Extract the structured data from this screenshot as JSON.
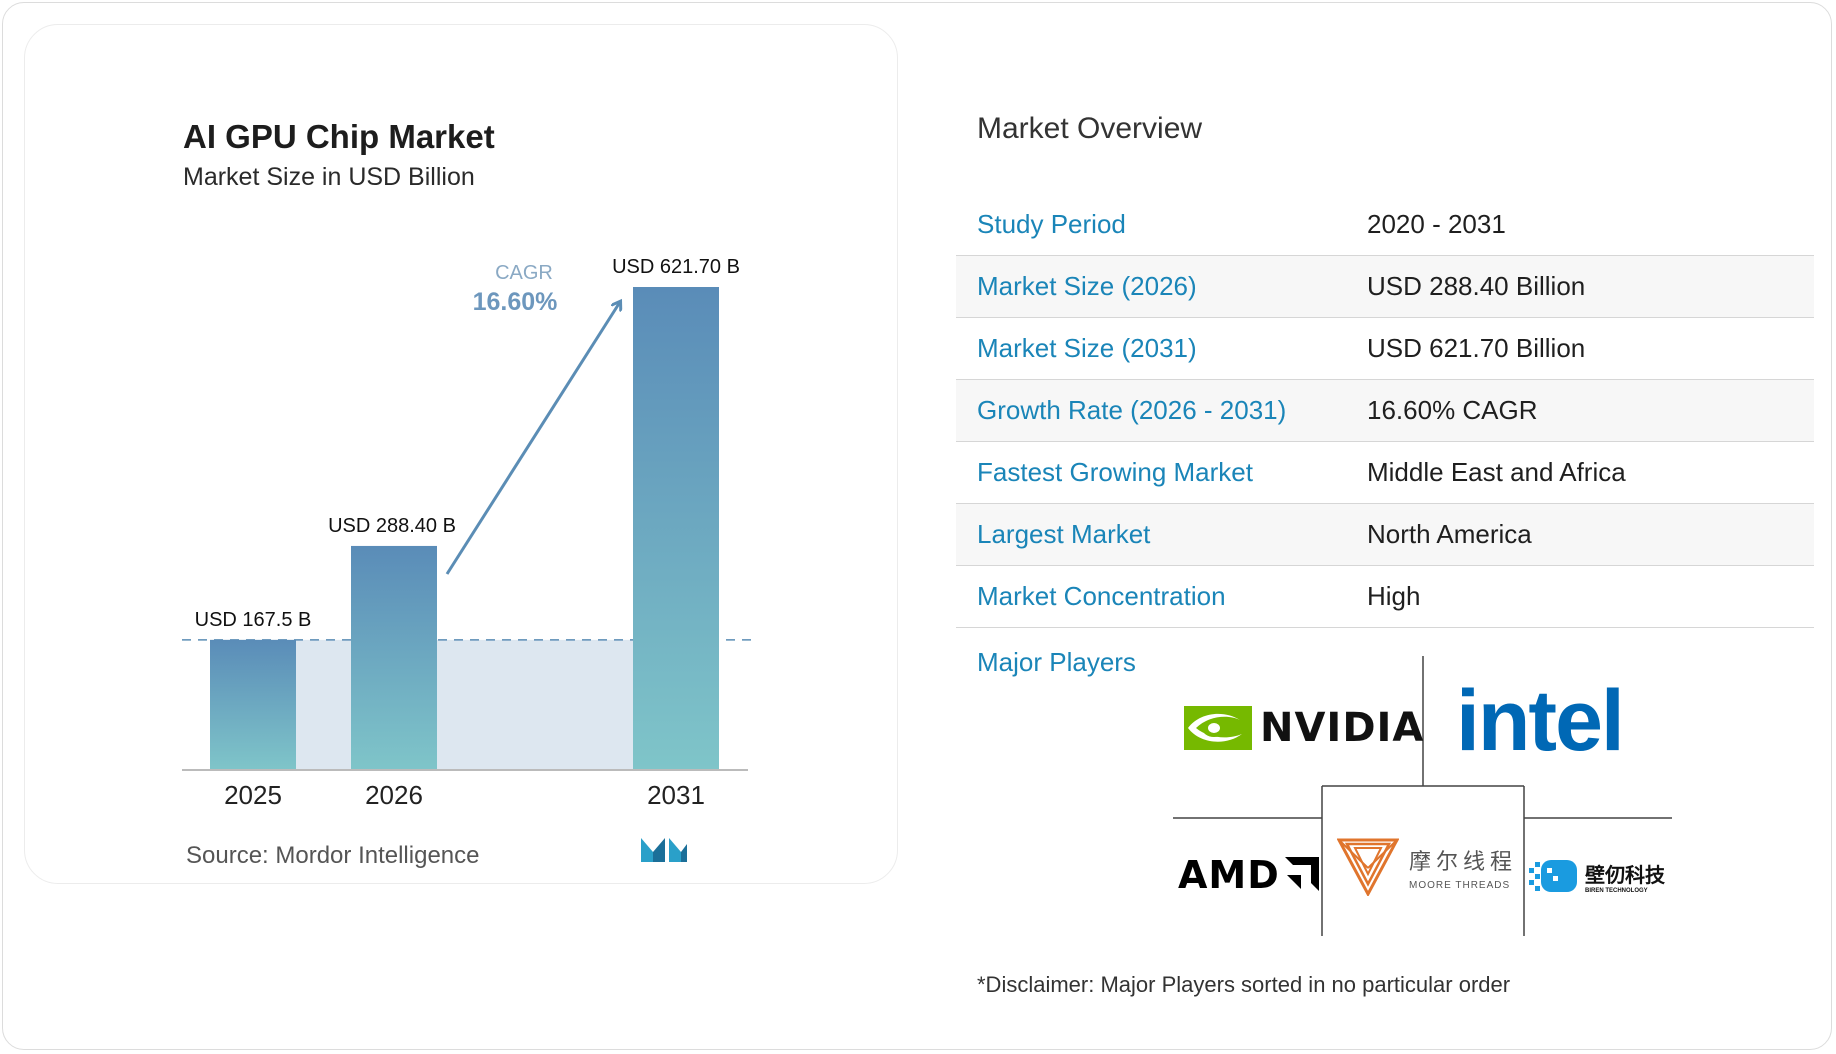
{
  "chart_data": {
    "type": "bar",
    "title": "AI GPU Chip Market",
    "subtitle": "Market Size in USD Billion",
    "categories": [
      "2025",
      "2026",
      "2031"
    ],
    "values": [
      167.5,
      288.4,
      621.7
    ],
    "value_labels": [
      "USD 167.5 B",
      "USD 288.40 B",
      "USD 621.70 B"
    ],
    "ylim": [
      0,
      621.7
    ],
    "cagr_label": "CAGR",
    "cagr_value": "16.60%",
    "source": "Source:  Mordor Intelligence",
    "colors": {
      "bar_top": "#5a8cb8",
      "bar_bottom": "#7fc5c9",
      "fill": "#dde7f0",
      "accent": "#5b8db5"
    }
  },
  "overview": {
    "title": "Market Overview",
    "rows": [
      {
        "label": "Study Period",
        "value": "2020 - 2031"
      },
      {
        "label": "Market Size (2026)",
        "value": "USD 288.40 Billion"
      },
      {
        "label": "Market Size (2031)",
        "value": "USD 621.70 Billion"
      },
      {
        "label": "Growth Rate (2026 - 2031)",
        "value": "16.60% CAGR"
      },
      {
        "label": "Fastest Growing Market",
        "value": "Middle East and Africa"
      },
      {
        "label": "Largest Market",
        "value": "North America"
      },
      {
        "label": "Market Concentration",
        "value": "High"
      }
    ],
    "players_label": "Major Players",
    "players": [
      {
        "name": "NVIDIA",
        "text": "NVIDIA",
        "icon": "nvidia-eye-icon",
        "color": "#76b900"
      },
      {
        "name": "Intel",
        "text": "intel",
        "color": "#0068b5"
      },
      {
        "name": "AMD",
        "text": "AMD",
        "icon": "amd-arrow-icon",
        "color": "#000000"
      },
      {
        "name": "Moore Threads",
        "text_cn": "摩尔线程",
        "text_en": "MOORE THREADS",
        "icon": "moore-threads-icon",
        "color": "#e0752d"
      },
      {
        "name": "Biren Technology",
        "text_cn": "壁仞科技",
        "text_en": "BIREN TECHNOLOGY",
        "icon": "biren-icon",
        "color": "#1a9be0"
      }
    ],
    "disclaimer": "*Disclaimer: Major Players sorted in no particular order"
  }
}
